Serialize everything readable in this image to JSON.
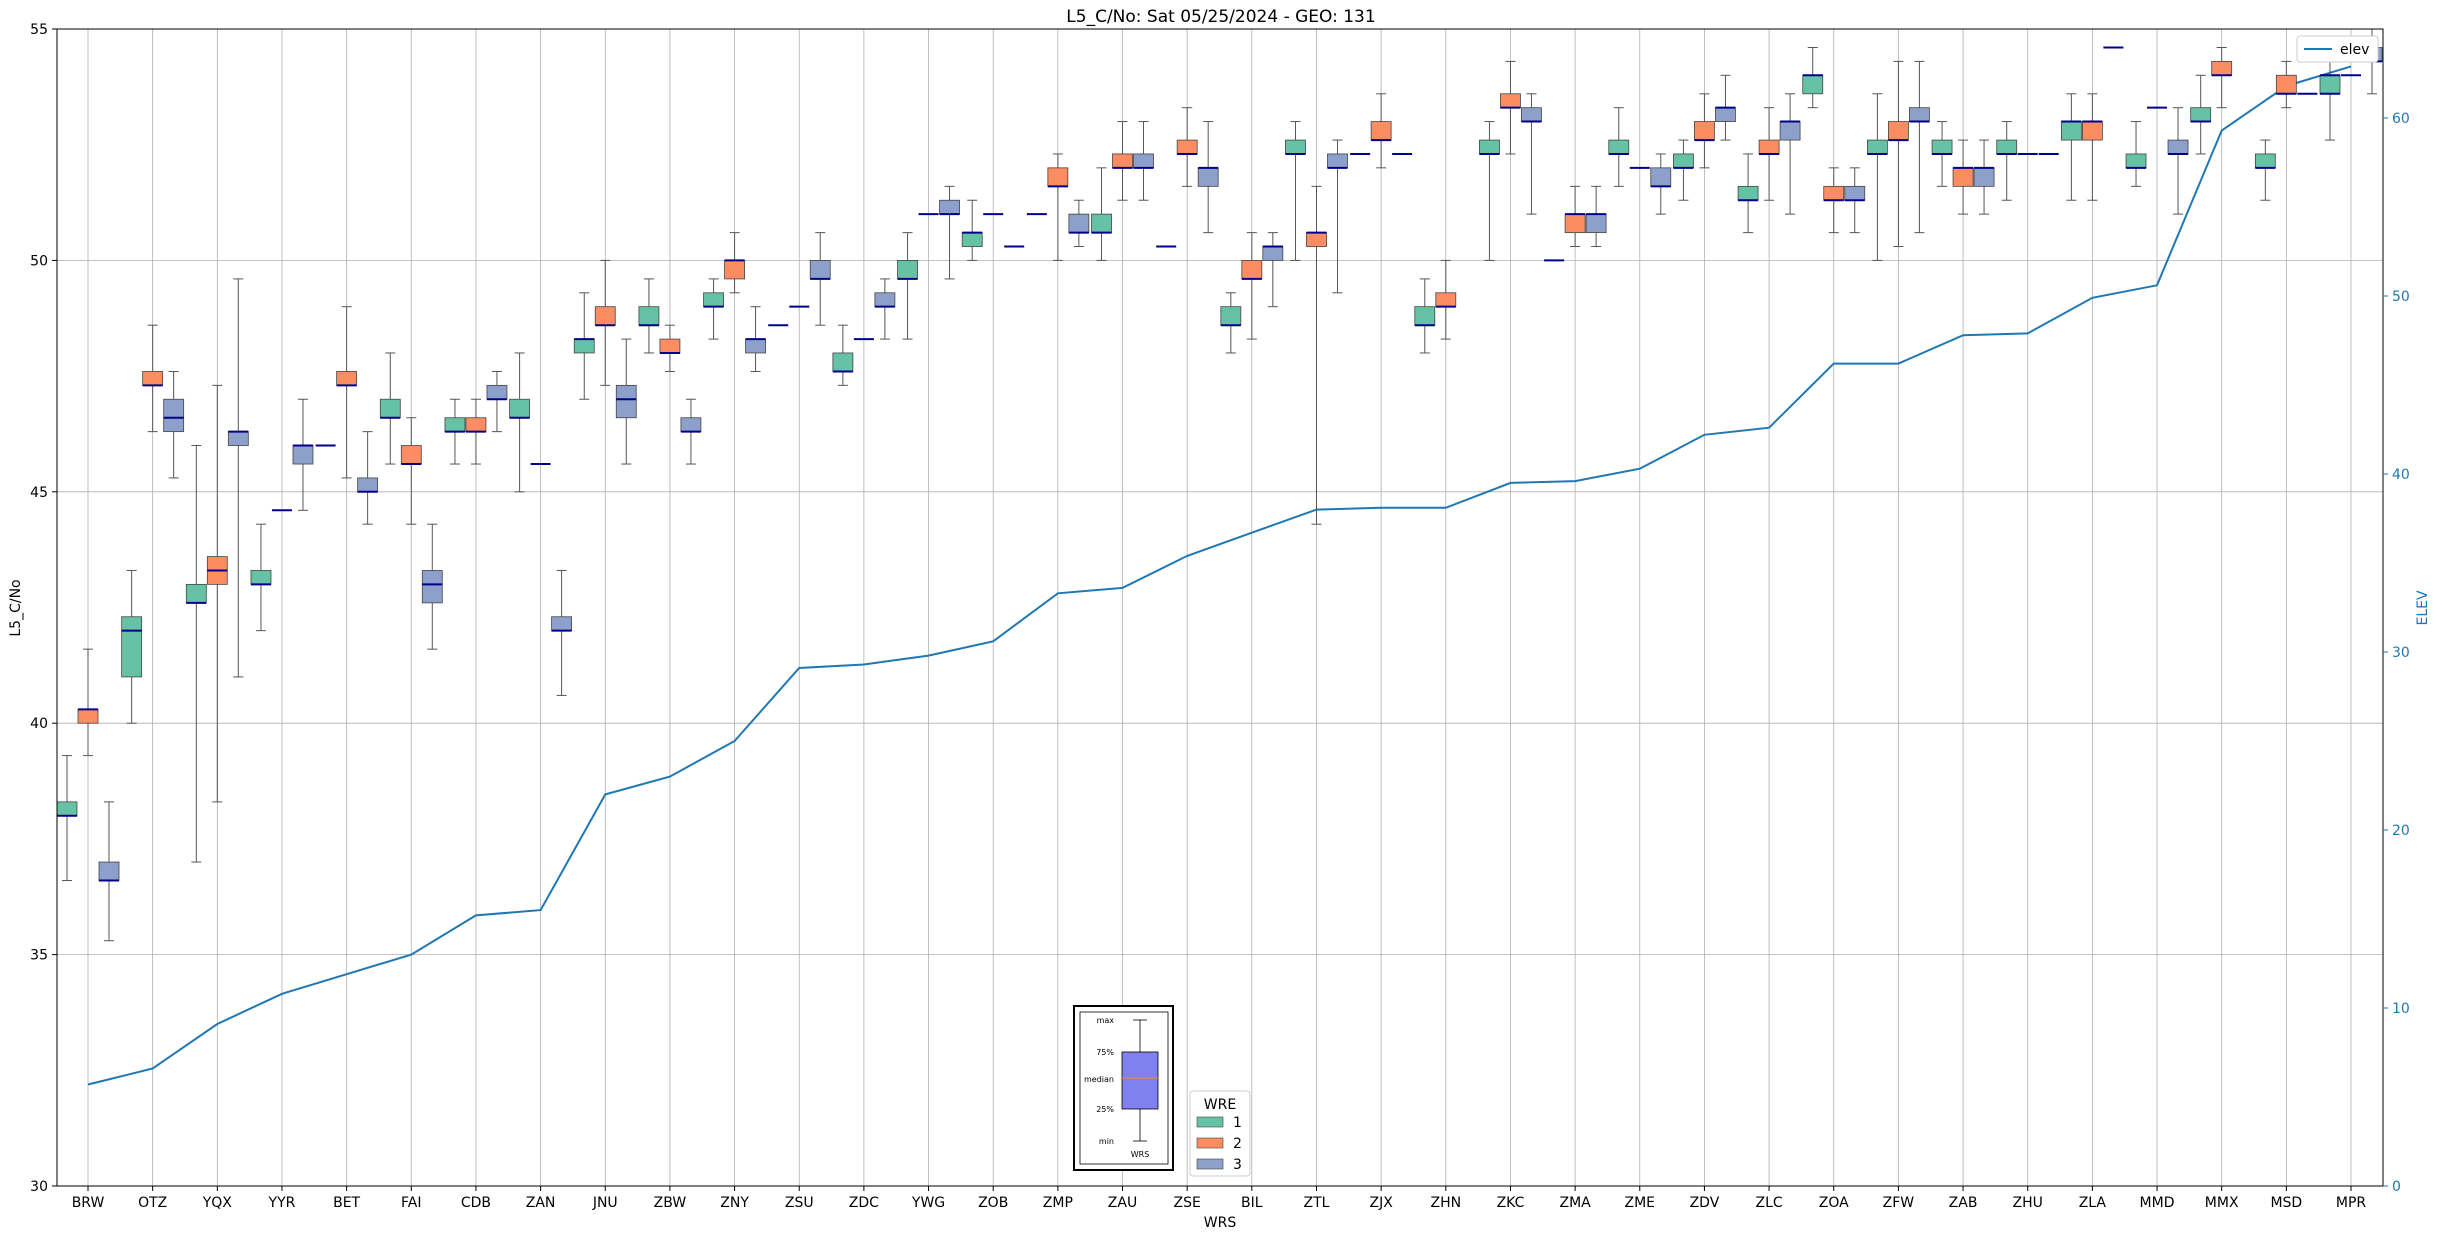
{
  "chart_data": {
    "type": "boxplot",
    "title": "L5_C/No: Sat 05/25/2024 - GEO: 131",
    "xlabel": "WRS",
    "ylabel": "L5_C/No",
    "y2label": "ELEV",
    "ylim": [
      30,
      55
    ],
    "y2lim": [
      0,
      65
    ],
    "yticks": [
      "30",
      "35",
      "40",
      "45",
      "50",
      "55"
    ],
    "y2ticks": [
      "0",
      "10",
      "20",
      "30",
      "40",
      "50",
      "60"
    ],
    "grid": true,
    "categories": [
      "BRW",
      "OTZ",
      "YQX",
      "YYR",
      "BET",
      "FAI",
      "CDB",
      "ZAN",
      "JNU",
      "ZBW",
      "ZNY",
      "ZSU",
      "ZDC",
      "YWG",
      "ZOB",
      "ZMP",
      "ZAU",
      "ZSE",
      "BIL",
      "ZTL",
      "ZJX",
      "ZHN",
      "ZKC",
      "ZMA",
      "ZME",
      "ZDV",
      "ZLC",
      "ZOA",
      "ZFW",
      "ZAB",
      "ZHU",
      "ZLA",
      "MMD",
      "MMX",
      "MSD",
      "MPR"
    ],
    "series": [
      {
        "name": "1",
        "color": "#66c2a5",
        "boxes": [
          [
            36.6,
            38.0,
            38.0,
            38.3,
            39.3
          ],
          [
            40.0,
            41.0,
            42.0,
            42.3,
            43.3
          ],
          [
            37.0,
            42.6,
            42.6,
            43.0,
            46.0
          ],
          [
            42.0,
            43.0,
            43.0,
            43.3,
            44.3
          ],
          null,
          [
            45.6,
            46.6,
            46.6,
            47.0,
            48.0
          ],
          [
            45.6,
            46.3,
            46.3,
            46.6,
            47.0
          ],
          [
            45.0,
            46.6,
            46.6,
            47.0,
            48.0
          ],
          [
            47.0,
            48.0,
            48.3,
            48.3,
            49.3
          ],
          [
            48.0,
            48.6,
            48.6,
            49.0,
            49.6
          ],
          [
            48.3,
            49.0,
            49.0,
            49.3,
            49.6
          ],
          null,
          [
            47.3,
            47.6,
            47.6,
            48.0,
            48.6
          ],
          [
            48.3,
            49.6,
            49.6,
            50.0,
            50.6
          ],
          [
            50.0,
            50.3,
            50.6,
            50.6,
            51.3
          ],
          null,
          [
            50.0,
            50.6,
            50.6,
            51.0,
            52.0
          ],
          null,
          [
            48.0,
            48.6,
            48.6,
            49.0,
            49.3
          ],
          [
            50.0,
            52.3,
            52.3,
            52.6,
            53.0
          ],
          null,
          [
            48.0,
            48.6,
            48.6,
            49.0,
            49.6
          ],
          [
            50.0,
            52.3,
            52.3,
            52.6,
            53.0
          ],
          null,
          [
            51.6,
            52.3,
            52.3,
            52.6,
            53.3
          ],
          [
            51.3,
            52.0,
            52.0,
            52.3,
            52.6
          ],
          [
            50.6,
            51.3,
            51.3,
            51.6,
            52.3
          ],
          [
            53.3,
            53.6,
            54.0,
            54.0,
            54.6
          ],
          [
            50.0,
            52.3,
            52.3,
            52.6,
            53.6
          ],
          [
            51.6,
            52.3,
            52.3,
            52.6,
            53.0
          ],
          [
            51.3,
            52.3,
            52.3,
            52.6,
            53.0
          ],
          [
            51.3,
            52.6,
            53.0,
            53.0,
            53.6
          ],
          [
            51.6,
            52.0,
            52.0,
            52.3,
            53.0
          ],
          [
            52.3,
            53.0,
            53.0,
            53.3,
            54.0
          ],
          [
            51.3,
            52.0,
            52.0,
            52.3,
            52.6
          ],
          [
            52.6,
            53.6,
            53.6,
            54.0,
            54.3
          ]
        ]
      },
      {
        "name": "2",
        "color": "#fc8d62",
        "boxes": [
          [
            39.3,
            40.0,
            40.3,
            40.3,
            41.6
          ],
          [
            46.3,
            47.3,
            47.3,
            47.6,
            48.6
          ],
          [
            38.3,
            43.0,
            43.3,
            43.6,
            47.3
          ],
          null,
          [
            45.3,
            47.3,
            47.3,
            47.6,
            49.0
          ],
          [
            44.3,
            45.6,
            45.6,
            46.0,
            46.6
          ],
          [
            45.6,
            46.3,
            46.3,
            46.6,
            47.0
          ],
          null,
          [
            47.3,
            48.6,
            48.6,
            49.0,
            50.0
          ],
          [
            47.6,
            48.0,
            48.0,
            48.3,
            48.6
          ],
          [
            49.3,
            49.6,
            50.0,
            50.0,
            50.6
          ],
          null,
          null,
          null,
          null,
          [
            50.0,
            51.6,
            51.6,
            52.0,
            52.3
          ],
          [
            51.3,
            52.0,
            52.0,
            52.3,
            53.0
          ],
          [
            51.6,
            52.3,
            52.3,
            52.6,
            53.3
          ],
          [
            48.3,
            49.6,
            49.6,
            50.0,
            50.6
          ],
          [
            44.3,
            50.3,
            50.6,
            50.6,
            51.6
          ],
          [
            52.0,
            52.6,
            52.6,
            53.0,
            53.6
          ],
          [
            48.3,
            49.0,
            49.0,
            49.3,
            50.0
          ],
          [
            52.3,
            53.3,
            53.3,
            53.6,
            54.3
          ],
          [
            50.3,
            50.6,
            51.0,
            51.0,
            51.6
          ],
          null,
          [
            52.0,
            52.6,
            52.6,
            53.0,
            53.6
          ],
          [
            51.3,
            52.3,
            52.3,
            52.6,
            53.3
          ],
          [
            50.6,
            51.3,
            51.3,
            51.6,
            52.0
          ],
          [
            50.3,
            52.6,
            52.6,
            53.0,
            54.3
          ],
          [
            51.0,
            51.6,
            52.0,
            52.0,
            52.6
          ],
          null,
          [
            51.3,
            52.6,
            53.0,
            53.0,
            53.6
          ],
          null,
          [
            53.3,
            54.0,
            54.0,
            54.3,
            54.6
          ],
          [
            53.3,
            53.6,
            53.6,
            54.0,
            54.3
          ],
          null
        ]
      },
      {
        "name": "3",
        "color": "#8da0cb",
        "boxes": [
          [
            35.3,
            36.6,
            36.6,
            37.0,
            38.3
          ],
          [
            45.3,
            46.3,
            46.6,
            47.0,
            47.6
          ],
          [
            41.0,
            46.0,
            46.3,
            46.3,
            49.6
          ],
          [
            44.6,
            45.6,
            46.0,
            46.0,
            47.0
          ],
          [
            44.3,
            45.0,
            45.0,
            45.3,
            46.3
          ],
          [
            41.6,
            42.6,
            43.0,
            43.3,
            44.3
          ],
          [
            46.3,
            47.0,
            47.0,
            47.3,
            47.6
          ],
          [
            40.6,
            42.0,
            42.0,
            42.3,
            43.3
          ],
          [
            45.6,
            46.6,
            47.0,
            47.3,
            48.3
          ],
          [
            45.6,
            46.3,
            46.3,
            46.6,
            47.0
          ],
          [
            47.6,
            48.0,
            48.3,
            48.3,
            49.0
          ],
          [
            48.6,
            49.6,
            49.6,
            50.0,
            50.6
          ],
          [
            48.3,
            49.0,
            49.0,
            49.3,
            49.6
          ],
          [
            49.6,
            51.0,
            51.0,
            51.3,
            51.6
          ],
          null,
          [
            50.3,
            50.6,
            50.6,
            51.0,
            51.3
          ],
          [
            51.3,
            52.0,
            52.0,
            52.3,
            53.0
          ],
          [
            50.6,
            51.6,
            52.0,
            52.0,
            53.0
          ],
          [
            49.0,
            50.0,
            50.3,
            50.3,
            50.6
          ],
          [
            49.3,
            52.0,
            52.0,
            52.3,
            52.6
          ],
          null,
          null,
          [
            51.0,
            53.0,
            53.0,
            53.3,
            53.6
          ],
          [
            50.3,
            50.6,
            51.0,
            51.0,
            51.6
          ],
          [
            51.0,
            51.6,
            51.6,
            52.0,
            52.3
          ],
          [
            52.6,
            53.0,
            53.3,
            53.3,
            54.0
          ],
          [
            51.0,
            52.6,
            53.0,
            53.0,
            53.6
          ],
          [
            50.6,
            51.3,
            51.3,
            51.6,
            52.0
          ],
          [
            50.6,
            53.0,
            53.0,
            53.3,
            54.3
          ],
          [
            51.0,
            51.6,
            52.0,
            52.0,
            52.6
          ],
          null,
          null,
          [
            51.0,
            52.3,
            52.3,
            52.6,
            53.3
          ],
          null,
          null,
          [
            53.6,
            54.3,
            54.3,
            54.6,
            55.0
          ]
        ]
      }
    ],
    "single_lines": [
      {
        "category": "BET",
        "series": "1",
        "value": 46.0
      },
      {
        "category": "YYR",
        "series": "2",
        "value": 44.6
      },
      {
        "category": "ZAN",
        "series": "2",
        "value": 45.6
      },
      {
        "category": "ZSU",
        "series": "1",
        "value": 48.6
      },
      {
        "category": "ZSU",
        "series": "2",
        "value": 49.0
      },
      {
        "category": "ZDC",
        "series": "2",
        "value": 48.3
      },
      {
        "category": "YWG",
        "series": "2",
        "value": 51.0
      },
      {
        "category": "ZOB",
        "series": "2",
        "value": 51.0
      },
      {
        "category": "ZOB",
        "series": "3",
        "value": 50.3
      },
      {
        "category": "ZMP",
        "series": "1",
        "value": 51.0
      },
      {
        "category": "ZSE",
        "series": "1",
        "value": 50.3
      },
      {
        "category": "ZJX",
        "series": "1",
        "value": 52.3
      },
      {
        "category": "ZJX",
        "series": "3",
        "value": 52.3
      },
      {
        "category": "ZMA",
        "series": "1",
        "value": 50.0
      },
      {
        "category": "ZME",
        "series": "2",
        "value": 52.0
      },
      {
        "category": "ZHU",
        "series": "2",
        "value": 52.3
      },
      {
        "category": "ZHU",
        "series": "3",
        "value": 52.3
      },
      {
        "category": "ZLA",
        "series": "3",
        "value": 54.6
      },
      {
        "category": "MMD",
        "series": "2",
        "value": 53.3
      },
      {
        "category": "MSD",
        "series": "3",
        "value": 53.6
      },
      {
        "category": "MPR",
        "series": "1",
        "value": 54.0
      },
      {
        "category": "MPR",
        "series": "2",
        "value": 54.0
      }
    ],
    "elev": {
      "name": "elev",
      "color": "#1f77b4",
      "values": [
        5.7,
        6.6,
        9.1,
        10.8,
        11.9,
        13.0,
        15.2,
        15.5,
        22.0,
        23.0,
        25.0,
        29.1,
        29.3,
        29.8,
        30.6,
        33.3,
        33.6,
        35.4,
        36.7,
        38.0,
        38.1,
        38.1,
        39.5,
        39.6,
        40.3,
        42.2,
        42.6,
        46.2,
        46.2,
        47.8,
        47.9,
        49.9,
        50.6,
        59.3,
        61.8,
        62.9
      ]
    },
    "legend": {
      "title": "WRE",
      "labels": [
        "1",
        "2",
        "3"
      ],
      "placement": "bottom-center",
      "elev_label": "elev",
      "elev_placement": "top-right"
    },
    "key_box": {
      "labels": [
        "max",
        "75%",
        "median",
        "25%",
        "min"
      ],
      "xlabel": "WRS",
      "fill": "#8080f0"
    }
  }
}
